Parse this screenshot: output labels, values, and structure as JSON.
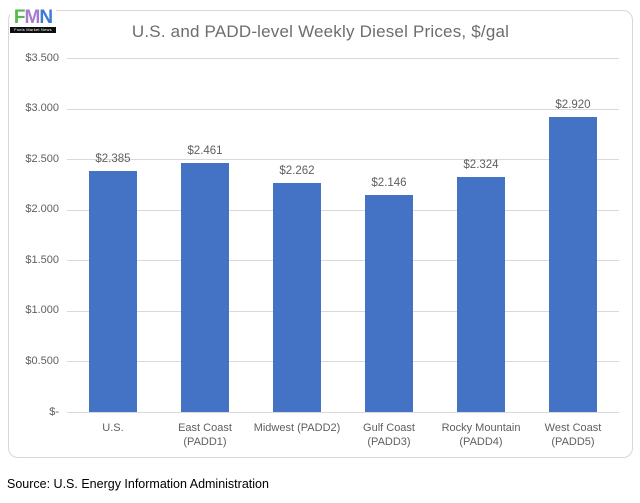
{
  "logo": {
    "letters": [
      "F",
      "M",
      "N"
    ],
    "letter_colors": [
      "#53b948",
      "#a87bd1",
      "#3a7ad9"
    ],
    "tagline": "Fuels Market News",
    "tagline_bg": "#0d0d0d",
    "tagline_color": "#ffffff"
  },
  "chart_data": {
    "type": "bar",
    "title": "U.S. and PADD-level Weekly Diesel Prices, $/gal",
    "categories": [
      "U.S.",
      "East Coast (PADD1)",
      "Midwest (PADD2)",
      "Gulf Coast (PADD3)",
      "Rocky Mountain (PADD4)",
      "West Coast (PADD5)"
    ],
    "categories_lines": [
      [
        "U.S."
      ],
      [
        "East Coast",
        "(PADD1)"
      ],
      [
        "Midwest (PADD2)"
      ],
      [
        "Gulf Coast",
        "(PADD3)"
      ],
      [
        "Rocky Mountain",
        "(PADD4)"
      ],
      [
        "West Coast",
        "(PADD5)"
      ]
    ],
    "values": [
      2.385,
      2.461,
      2.262,
      2.146,
      2.324,
      2.92
    ],
    "data_labels": [
      "$2.385",
      "$2.461",
      "$2.262",
      "$2.146",
      "$2.324",
      "$2.920"
    ],
    "y_ticks": [
      {
        "label": "$3.500",
        "value": 3.5
      },
      {
        "label": "$3.000",
        "value": 3.0
      },
      {
        "label": "$2.500",
        "value": 2.5
      },
      {
        "label": "$2.000",
        "value": 2.0
      },
      {
        "label": "$1.500",
        "value": 1.5
      },
      {
        "label": "$1.000",
        "value": 1.0
      },
      {
        "label": "$0.500",
        "value": 0.5
      },
      {
        "label": "$-",
        "value": 0
      }
    ],
    "xlabel": "",
    "ylabel": "",
    "ylim": [
      0,
      3.5
    ],
    "bar_color": "#4472c4",
    "grid": true,
    "gridline_color": "#d9d9d9",
    "axis_label_color": "#5f5f5f",
    "title_color": "#6d6d6d",
    "legend": "none"
  },
  "footer": {
    "source": "Source: U.S. Energy Information Administration"
  }
}
